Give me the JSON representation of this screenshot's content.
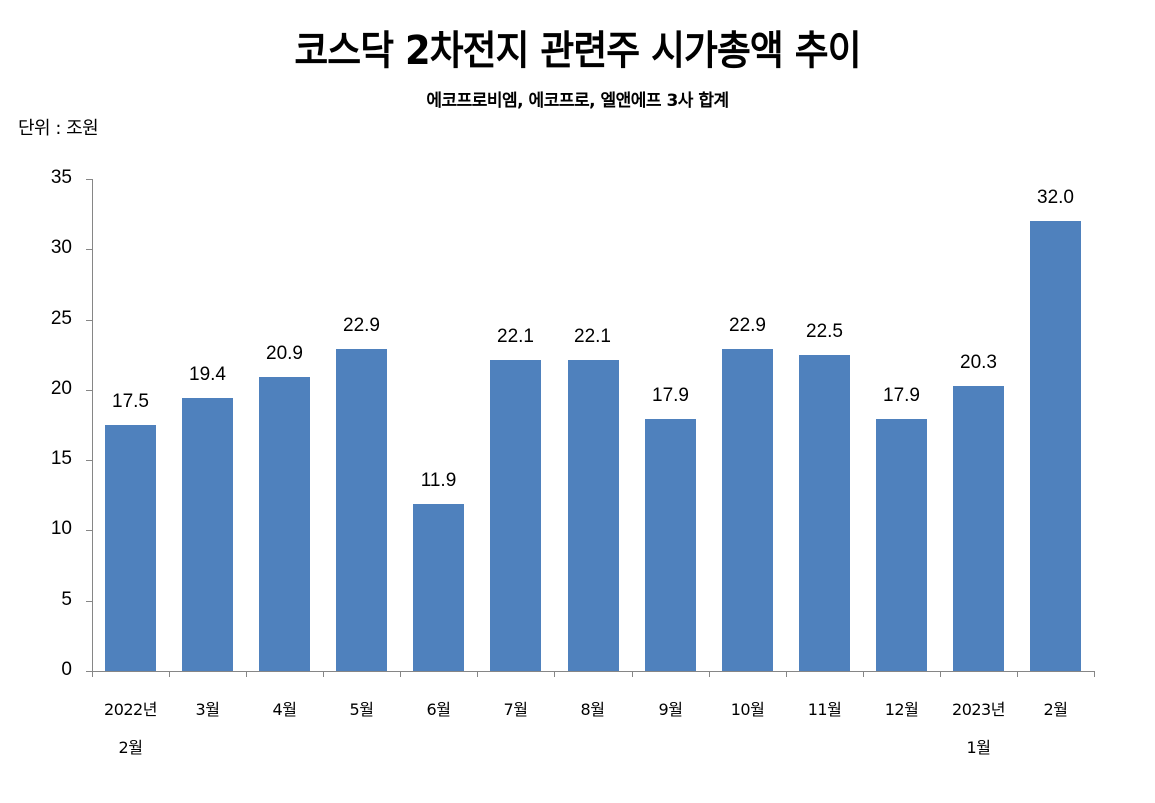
{
  "header": {
    "title": "코스닥 2차전지 관련주 시가총액 추이",
    "subtitle": "에코프로비엠, 에코프로, 엘앤에프 3사 합계",
    "unit": "단위 : 조원"
  },
  "colors": {
    "bar": "#4F81BD",
    "axis": "#868686",
    "text": "#000000"
  },
  "chart_data": {
    "type": "bar",
    "title": "코스닥 2차전지 관련주 시가총액 추이",
    "subtitle": "에코프로비엠, 에코프로, 엘앤에프 3사 합계",
    "unit_label": "단위 : 조원",
    "xlabel": "",
    "ylabel": "",
    "ylim": [
      0,
      35
    ],
    "yticks": [
      0,
      5,
      10,
      15,
      20,
      25,
      30,
      35
    ],
    "grid": false,
    "legend": null,
    "categories": [
      "2022년 2월",
      "3월",
      "4월",
      "5월",
      "6월",
      "7월",
      "8월",
      "9월",
      "10월",
      "11월",
      "12월",
      "2023년 1월",
      "2월"
    ],
    "category_lines": [
      [
        "2022년",
        "2월"
      ],
      [
        "3월"
      ],
      [
        "4월"
      ],
      [
        "5월"
      ],
      [
        "6월"
      ],
      [
        "7월"
      ],
      [
        "8월"
      ],
      [
        "9월"
      ],
      [
        "10월"
      ],
      [
        "11월"
      ],
      [
        "12월"
      ],
      [
        "2023년",
        "1월"
      ],
      [
        "2월"
      ]
    ],
    "values": [
      17.5,
      19.4,
      20.9,
      22.9,
      11.9,
      22.1,
      22.1,
      17.9,
      22.9,
      22.5,
      17.9,
      20.3,
      32.0
    ],
    "value_labels": [
      "17.5",
      "19.4",
      "20.9",
      "22.9",
      "11.9",
      "22.1",
      "22.1",
      "17.9",
      "22.9",
      "22.5",
      "17.9",
      "20.3",
      "32.0"
    ]
  }
}
